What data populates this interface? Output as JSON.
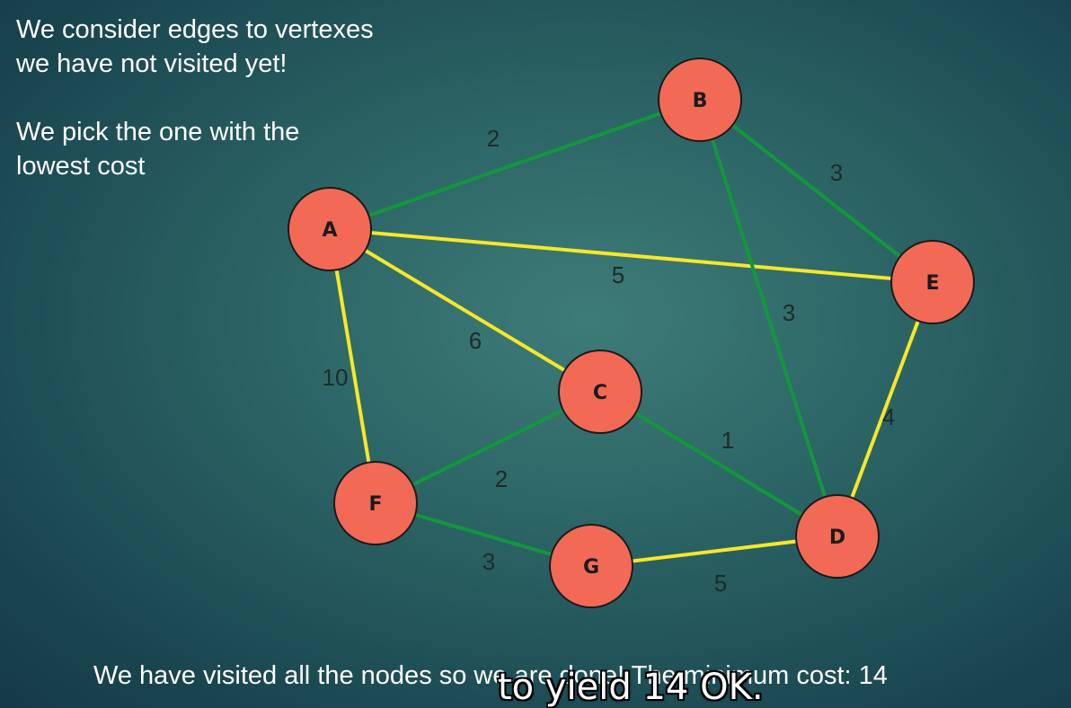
{
  "intro": {
    "line1": "We consider edges to vertexes",
    "line2": "we have not visited yet!",
    "line3": "We pick the one with the",
    "line4": "lowest cost"
  },
  "bottom_text": "We have visited all the nodes so we are done! The minimum cost: 14",
  "caption": "to yield 14 OK.",
  "colors": {
    "node_fill": "#f26a55",
    "mst_edge": "#14963f",
    "other_edge": "#f5e72a"
  },
  "nodes": [
    "A",
    "B",
    "C",
    "D",
    "E",
    "F",
    "G"
  ],
  "edges": [
    {
      "from": "A",
      "to": "B",
      "weight": "2",
      "mst": true
    },
    {
      "from": "A",
      "to": "E",
      "weight": "5",
      "mst": false
    },
    {
      "from": "A",
      "to": "C",
      "weight": "6",
      "mst": false
    },
    {
      "from": "A",
      "to": "F",
      "weight": "10",
      "mst": false
    },
    {
      "from": "B",
      "to": "E",
      "weight": "3",
      "mst": true
    },
    {
      "from": "B",
      "to": "D",
      "weight": "3",
      "mst": true
    },
    {
      "from": "E",
      "to": "D",
      "weight": "4",
      "mst": false
    },
    {
      "from": "C",
      "to": "D",
      "weight": "1",
      "mst": true
    },
    {
      "from": "C",
      "to": "F",
      "weight": "2",
      "mst": true
    },
    {
      "from": "F",
      "to": "G",
      "weight": "3",
      "mst": true
    },
    {
      "from": "G",
      "to": "D",
      "weight": "5",
      "mst": false
    }
  ]
}
